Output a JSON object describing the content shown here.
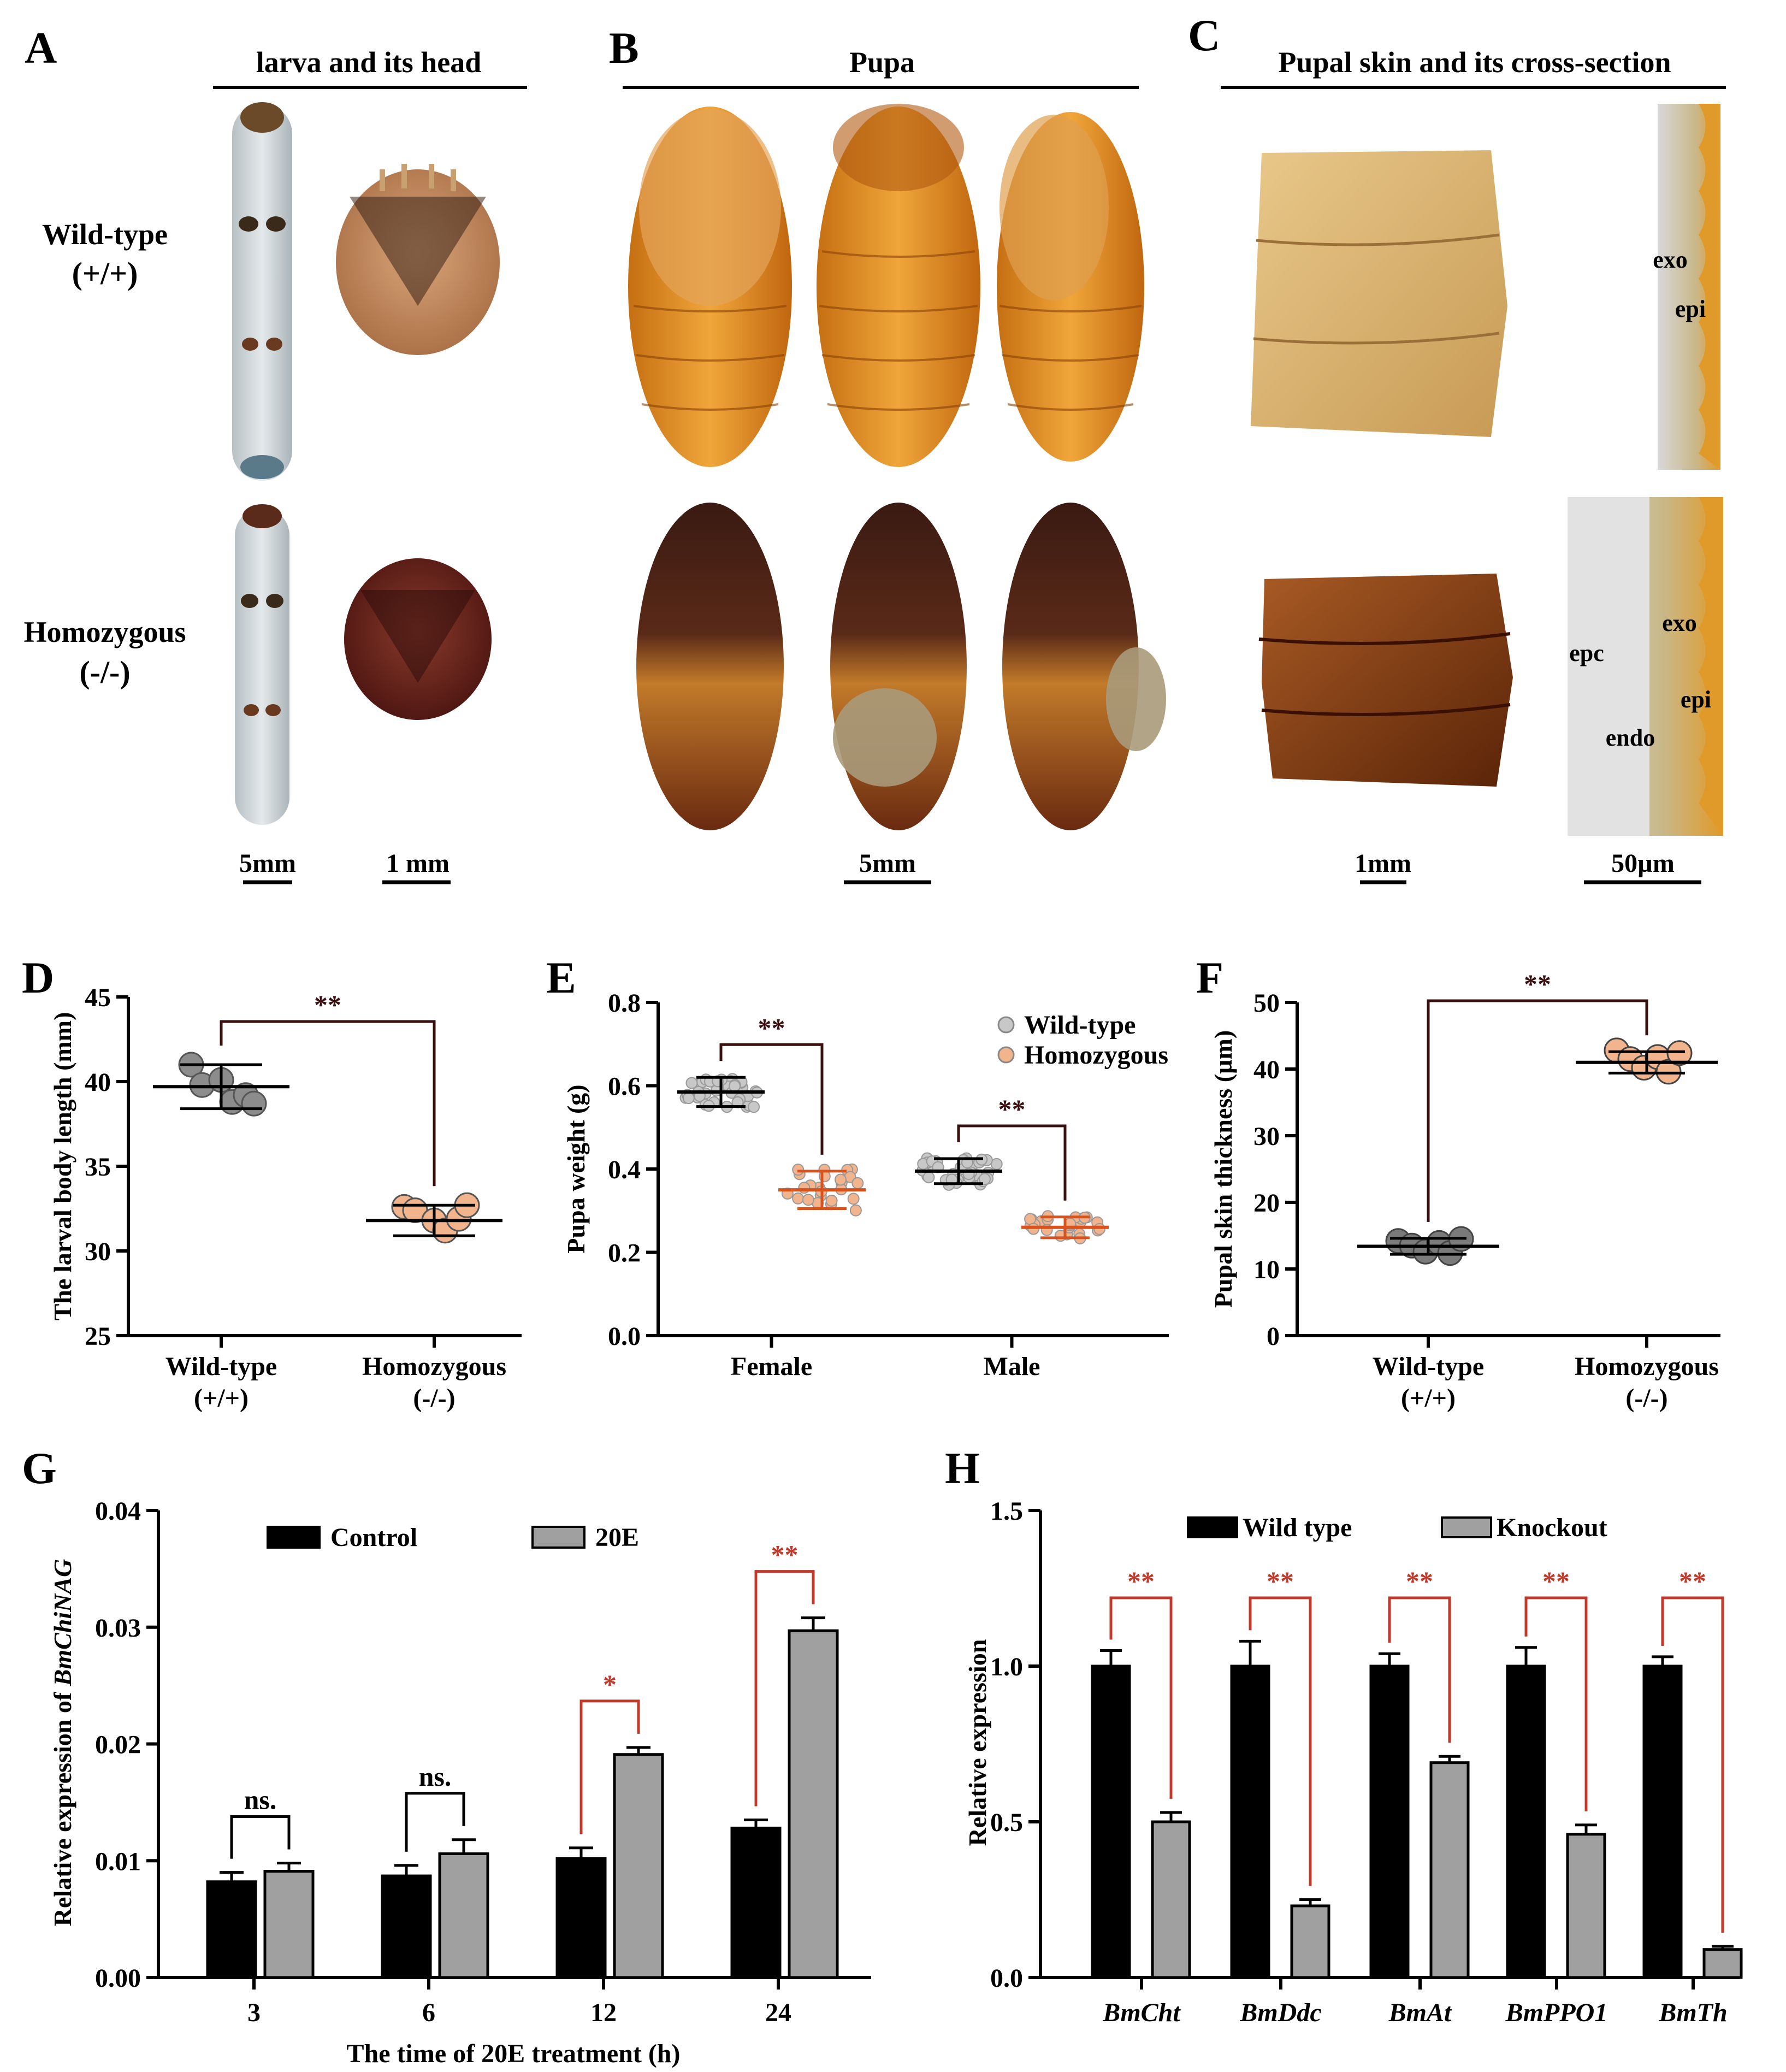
{
  "panels": {
    "A": {
      "letter": "A",
      "title": "larva and its head",
      "scale_left": "5mm",
      "scale_right": "1 mm"
    },
    "B": {
      "letter": "B",
      "title": "Pupa",
      "scale": "5mm"
    },
    "C": {
      "letter": "C",
      "title": "Pupal skin and its cross-section",
      "scale_left": "1mm",
      "scale_right": "50µm",
      "labels_top": [
        "exo",
        "epi"
      ],
      "labels_bottom": [
        "exo",
        "epc",
        "epi",
        "endo"
      ]
    }
  },
  "row_labels": {
    "wild_1": "Wild-type",
    "wild_2": "(+/+)",
    "homo_1": "Homozygous",
    "homo_2": "(-/-)"
  },
  "chart_data": [
    {
      "panel": "D",
      "type": "scatter",
      "ylabel": "The larval body length (mm)",
      "categories": [
        "Wild-type\n(+/+)",
        "Homozygous\n(-/-)"
      ],
      "yticks": [
        25,
        30,
        35,
        40,
        45
      ],
      "ylim": [
        25,
        45
      ],
      "series": [
        {
          "category": "Wild-type (+/+)",
          "color": "#8c8c8c",
          "mean": 39.7,
          "sd": 1.3,
          "points": [
            41.0,
            39.8,
            40.1,
            38.8,
            39.2,
            38.7
          ]
        },
        {
          "category": "Homozygous (-/-)",
          "color": "#f2b48c",
          "mean": 31.8,
          "sd": 0.9,
          "points": [
            32.6,
            32.4,
            31.8,
            31.2,
            31.9,
            32.7
          ]
        }
      ],
      "significance": "**"
    },
    {
      "panel": "E",
      "type": "scatter",
      "ylabel": "Pupa weight (g)",
      "categories": [
        "Female",
        "Male"
      ],
      "yticks": [
        0.0,
        0.2,
        0.4,
        0.6,
        0.8
      ],
      "ylim": [
        0,
        0.8
      ],
      "legend": [
        {
          "name": "Wild-type",
          "color": "#c8c8c8"
        },
        {
          "name": "Homozygous",
          "color": "#f2b48c"
        }
      ],
      "groups": [
        {
          "category": "Female",
          "wild_mean": 0.585,
          "wild_sd": 0.035,
          "homo_mean": 0.35,
          "homo_sd": 0.045,
          "significance": "**"
        },
        {
          "category": "Male",
          "wild_mean": 0.395,
          "wild_sd": 0.03,
          "homo_mean": 0.26,
          "homo_sd": 0.025,
          "significance": "**"
        }
      ]
    },
    {
      "panel": "F",
      "type": "scatter",
      "ylabel": "Pupal skin thickness (µm)",
      "categories": [
        "Wild-type\n(+/+)",
        "Homozygous\n(-/-)"
      ],
      "yticks": [
        0,
        10,
        20,
        30,
        40,
        50
      ],
      "ylim": [
        0,
        50
      ],
      "series": [
        {
          "category": "Wild-type (+/+)",
          "color": "#7a7a7a",
          "mean": 13.4,
          "sd": 1.2,
          "points": [
            14.2,
            13.5,
            12.6,
            13.9,
            12.4,
            14.5
          ]
        },
        {
          "category": "Homozygous (-/-)",
          "color": "#f2b48c",
          "mean": 41.0,
          "sd": 1.6,
          "points": [
            42.8,
            41.5,
            40.2,
            41.8,
            39.6,
            42.4
          ]
        }
      ],
      "significance": "**"
    },
    {
      "panel": "G",
      "type": "bar",
      "xlabel": "The time of 20E treatment (h)",
      "ylabel_prefix": "Relative expression of ",
      "ylabel_gene": "BmChiNAG",
      "categories": [
        "3",
        "6",
        "12",
        "24"
      ],
      "yticks": [
        "0.00",
        "0.01",
        "0.02",
        "0.03",
        "0.04"
      ],
      "ylim": [
        0,
        0.04
      ],
      "series": [
        {
          "name": "Control",
          "color": "#000000",
          "values": [
            0.0082,
            0.0087,
            0.0102,
            0.0128
          ],
          "errors": [
            0.0008,
            0.0009,
            0.0009,
            0.0007
          ]
        },
        {
          "name": "20E",
          "color": "#a0a0a0",
          "values": [
            0.0091,
            0.0106,
            0.0191,
            0.0297
          ],
          "errors": [
            0.0007,
            0.0012,
            0.0006,
            0.0011
          ]
        }
      ],
      "significance": [
        "ns.",
        "ns.",
        "*",
        "**"
      ]
    },
    {
      "panel": "H",
      "type": "bar",
      "ylabel": "Relative expression",
      "categories": [
        "BmCht",
        "BmDdc",
        "BmAt",
        "BmPPO1",
        "BmTh"
      ],
      "yticks": [
        "0.0",
        "0.5",
        "1.0",
        "1.5"
      ],
      "ylim": [
        0,
        1.5
      ],
      "series": [
        {
          "name": "Wild type",
          "color": "#000000",
          "values": [
            1.0,
            1.0,
            1.0,
            1.0,
            1.0
          ],
          "errors": [
            0.05,
            0.08,
            0.04,
            0.06,
            0.03
          ]
        },
        {
          "name": "Knockout",
          "color": "#a0a0a0",
          "values": [
            0.5,
            0.23,
            0.69,
            0.46,
            0.09
          ],
          "errors": [
            0.03,
            0.02,
            0.02,
            0.03,
            0.01
          ]
        }
      ],
      "significance": [
        "**",
        "**",
        "**",
        "**",
        "**"
      ]
    }
  ]
}
